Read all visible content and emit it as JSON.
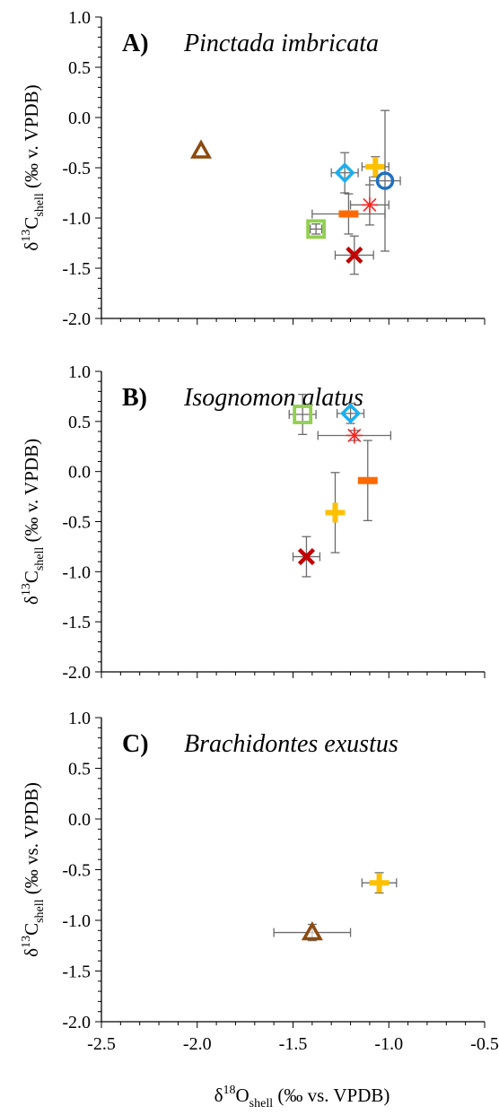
{
  "chart_data": [
    {
      "type": "scatter",
      "panel_label": "A)",
      "title": "Pinctada imbricata",
      "ylabel": {
        "prefix": "δ",
        "sup": "13",
        "main": "C",
        "sub": "shell",
        "unit": " (‰ v. VPDB)"
      },
      "xlabel": "",
      "xlim": [
        -2.5,
        -0.5
      ],
      "ylim": [
        -2.0,
        1.0
      ],
      "yticks": [
        "1.0",
        "0.5",
        "0.0",
        "-0.5",
        "-1.0",
        "-1.5",
        "-2.0"
      ],
      "show_xtick_labels": false,
      "grid": false,
      "points": [
        {
          "marker": "triangle",
          "color": "#8b4a10",
          "x": -1.98,
          "y": -0.33,
          "xerr": 0,
          "yerr": 0
        },
        {
          "marker": "diamond",
          "color": "#1ab0f0",
          "x": -1.23,
          "y": -0.55,
          "xerr": 0.07,
          "yerr": 0.2
        },
        {
          "marker": "plus",
          "color": "#ffc000",
          "x": -1.07,
          "y": -0.49,
          "xerr": 0.07,
          "yerr": 0.1
        },
        {
          "marker": "circle",
          "color": "#1f70c1",
          "x": -1.02,
          "y": -0.63,
          "xerr": 0.08,
          "yerr": 0.7
        },
        {
          "marker": "dash",
          "color": "#ff6a00",
          "x": -1.21,
          "y": -0.96,
          "xerr": 0.19,
          "yerr": 0.2
        },
        {
          "marker": "star",
          "color": "#ff2020",
          "x": -1.1,
          "y": -0.87,
          "xerr": 0.1,
          "yerr": 0.2
        },
        {
          "marker": "square",
          "color": "#92d050",
          "x": -1.38,
          "y": -1.11,
          "xerr": 0.03,
          "yerr": 0.05
        },
        {
          "marker": "x",
          "color": "#c00000",
          "x": -1.18,
          "y": -1.37,
          "xerr": 0.1,
          "yerr": 0.19
        }
      ]
    },
    {
      "type": "scatter",
      "panel_label": "B)",
      "title": "Isognomon alatus",
      "ylabel": {
        "prefix": "δ",
        "sup": "13",
        "main": "C",
        "sub": "shell",
        "unit": " (‰ v. VPDB)"
      },
      "xlabel": "",
      "xlim": [
        -2.5,
        -0.5
      ],
      "ylim": [
        -2.0,
        1.0
      ],
      "yticks": [
        "1.0",
        "0.5",
        "0.0",
        "-0.5",
        "-1.0",
        "-1.5",
        "-2.0"
      ],
      "show_xtick_labels": false,
      "grid": false,
      "points": [
        {
          "marker": "square",
          "color": "#92d050",
          "x": -1.45,
          "y": 0.57,
          "xerr": 0.07,
          "yerr": 0.2
        },
        {
          "marker": "diamond",
          "color": "#1ab0f0",
          "x": -1.2,
          "y": 0.58,
          "xerr": 0.07,
          "yerr": 0.1
        },
        {
          "marker": "star",
          "color": "#ff2020",
          "x": -1.18,
          "y": 0.36,
          "xerr": 0.19,
          "yerr": 0.05
        },
        {
          "marker": "dash",
          "color": "#ff6a00",
          "x": -1.11,
          "y": -0.09,
          "xerr": 0,
          "yerr": 0.4
        },
        {
          "marker": "plus",
          "color": "#ffc000",
          "x": -1.28,
          "y": -0.41,
          "xerr": 0,
          "yerr": 0.4
        },
        {
          "marker": "x",
          "color": "#c00000",
          "x": -1.43,
          "y": -0.85,
          "xerr": 0.07,
          "yerr": 0.2
        }
      ]
    },
    {
      "type": "scatter",
      "panel_label": "C)",
      "title": "Brachidontes exustus",
      "ylabel": {
        "prefix": "δ",
        "sup": "13",
        "main": "C",
        "sub": "shell",
        "unit": " (‰ vs. VPDB)"
      },
      "xlabel": {
        "prefix": "δ",
        "sup": "18",
        "main": "O",
        "sub": "shell",
        "unit": " (‰ vs. VPDB)"
      },
      "xlim": [
        -2.5,
        -0.5
      ],
      "ylim": [
        -2.0,
        1.0
      ],
      "yticks": [
        "1.0",
        "0.5",
        "0.0",
        "-0.5",
        "-1.0",
        "-1.5",
        "-2.0"
      ],
      "xticks": [
        "-2.5",
        "-2.0",
        "-1.5",
        "-1.0",
        "-0.5"
      ],
      "show_xtick_labels": true,
      "grid": false,
      "points": [
        {
          "marker": "plus",
          "color": "#ffc000",
          "x": -1.05,
          "y": -0.63,
          "xerr": 0.09,
          "yerr": 0.1
        },
        {
          "marker": "triangle",
          "color": "#8b4a10",
          "x": -1.4,
          "y": -1.12,
          "xerr": 0.2,
          "yerr": 0.08
        }
      ]
    }
  ]
}
